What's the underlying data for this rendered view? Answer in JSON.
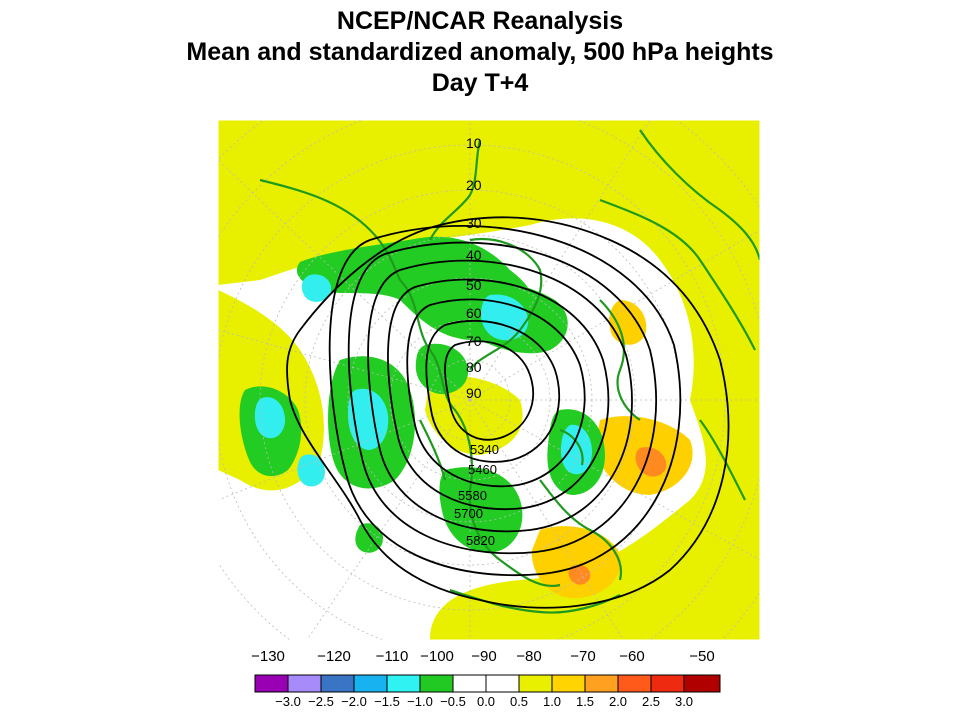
{
  "title": {
    "line1": "NCEP/NCAR Reanalysis",
    "line2": "Mean and standardized anomaly, 500 hPa heights",
    "line3": "Day T+4"
  },
  "latitude_labels": [
    "10",
    "20",
    "30",
    "40",
    "50",
    "60",
    "70",
    "80",
    "90"
  ],
  "contour_labels": [
    "5340",
    "5460",
    "5580",
    "5700",
    "5820"
  ],
  "longitude_labels": [
    "−130",
    "−120",
    "−110",
    "−100",
    "−90",
    "−80",
    "−70",
    "−60",
    "−50"
  ],
  "colorbar": {
    "labels": [
      "−3.0",
      "−2.5",
      "−2.0",
      "−1.5",
      "−1.0",
      "−0.5",
      "0.0",
      "0.5",
      "1.0",
      "1.5",
      "2.0",
      "2.5",
      "3.0"
    ],
    "colors": [
      "#9900b3",
      "#a78bfa",
      "#3a74c4",
      "#19b2f0",
      "#30f2f2",
      "#22c922",
      "#ffffff",
      "#ffffff",
      "#e8f000",
      "#ffd400",
      "#ffa020",
      "#ff5a1a",
      "#ee2a10",
      "#b00000"
    ]
  },
  "colors": {
    "land_outline": "#1f9a1f",
    "neg_light": "#22cc22",
    "neg_strong": "#33eeee",
    "pos_light": "#e8f000",
    "pos_medium": "#ffd000",
    "pos_strong": "#ff8a20",
    "contour": "#000000",
    "grid": "#bbbbbb"
  }
}
